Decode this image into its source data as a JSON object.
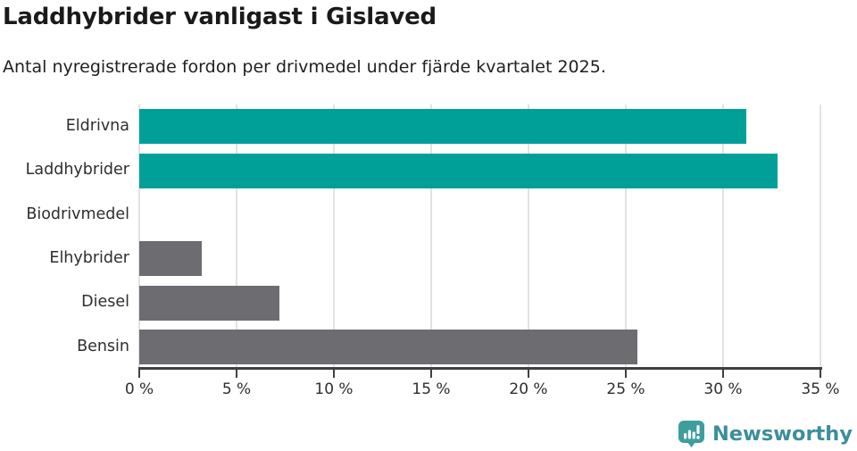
{
  "header": {
    "title": "Laddhybrider vanligast i Gislaved",
    "subtitle": "Antal nyregistrerade fordon per drivmedel under fjärde kvartalet 2025."
  },
  "chart_data": {
    "type": "bar",
    "orientation": "horizontal",
    "title": "Laddhybrider vanligast i Gislaved",
    "subtitle": "Antal nyregistrerade fordon per drivmedel under fjärde kvartalet 2025.",
    "categories": [
      "Eldrivna",
      "Laddhybrider",
      "Biodrivmedel",
      "Elhybrider",
      "Diesel",
      "Bensin"
    ],
    "values": [
      31.2,
      32.8,
      0,
      3.2,
      7.2,
      25.6
    ],
    "unit": "%",
    "xlim": [
      0,
      35
    ],
    "x_ticks": [
      {
        "value": 0,
        "label": "0 %"
      },
      {
        "value": 5,
        "label": "5 %"
      },
      {
        "value": 10,
        "label": "10 %"
      },
      {
        "value": 15,
        "label": "15 %"
      },
      {
        "value": 20,
        "label": "20 %"
      },
      {
        "value": 25,
        "label": "25 %"
      },
      {
        "value": 30,
        "label": "30 %"
      },
      {
        "value": 35,
        "label": "35 %"
      }
    ],
    "bar_colors": [
      "#00a099",
      "#00a099",
      "#6c6c71",
      "#6c6c71",
      "#6c6c71",
      "#6c6c71"
    ],
    "grid": true,
    "legend": "none",
    "colors": {
      "highlight_teal": "#00a099",
      "neutral_gray": "#6c6c71",
      "gridline": "#e2e2e2",
      "axis": "#404040",
      "text": "#2e2e2e"
    }
  },
  "footer": {
    "brand": "Newsworthy",
    "brand_color": "#3b8f9b",
    "icon_color": "#3e9d9d"
  }
}
